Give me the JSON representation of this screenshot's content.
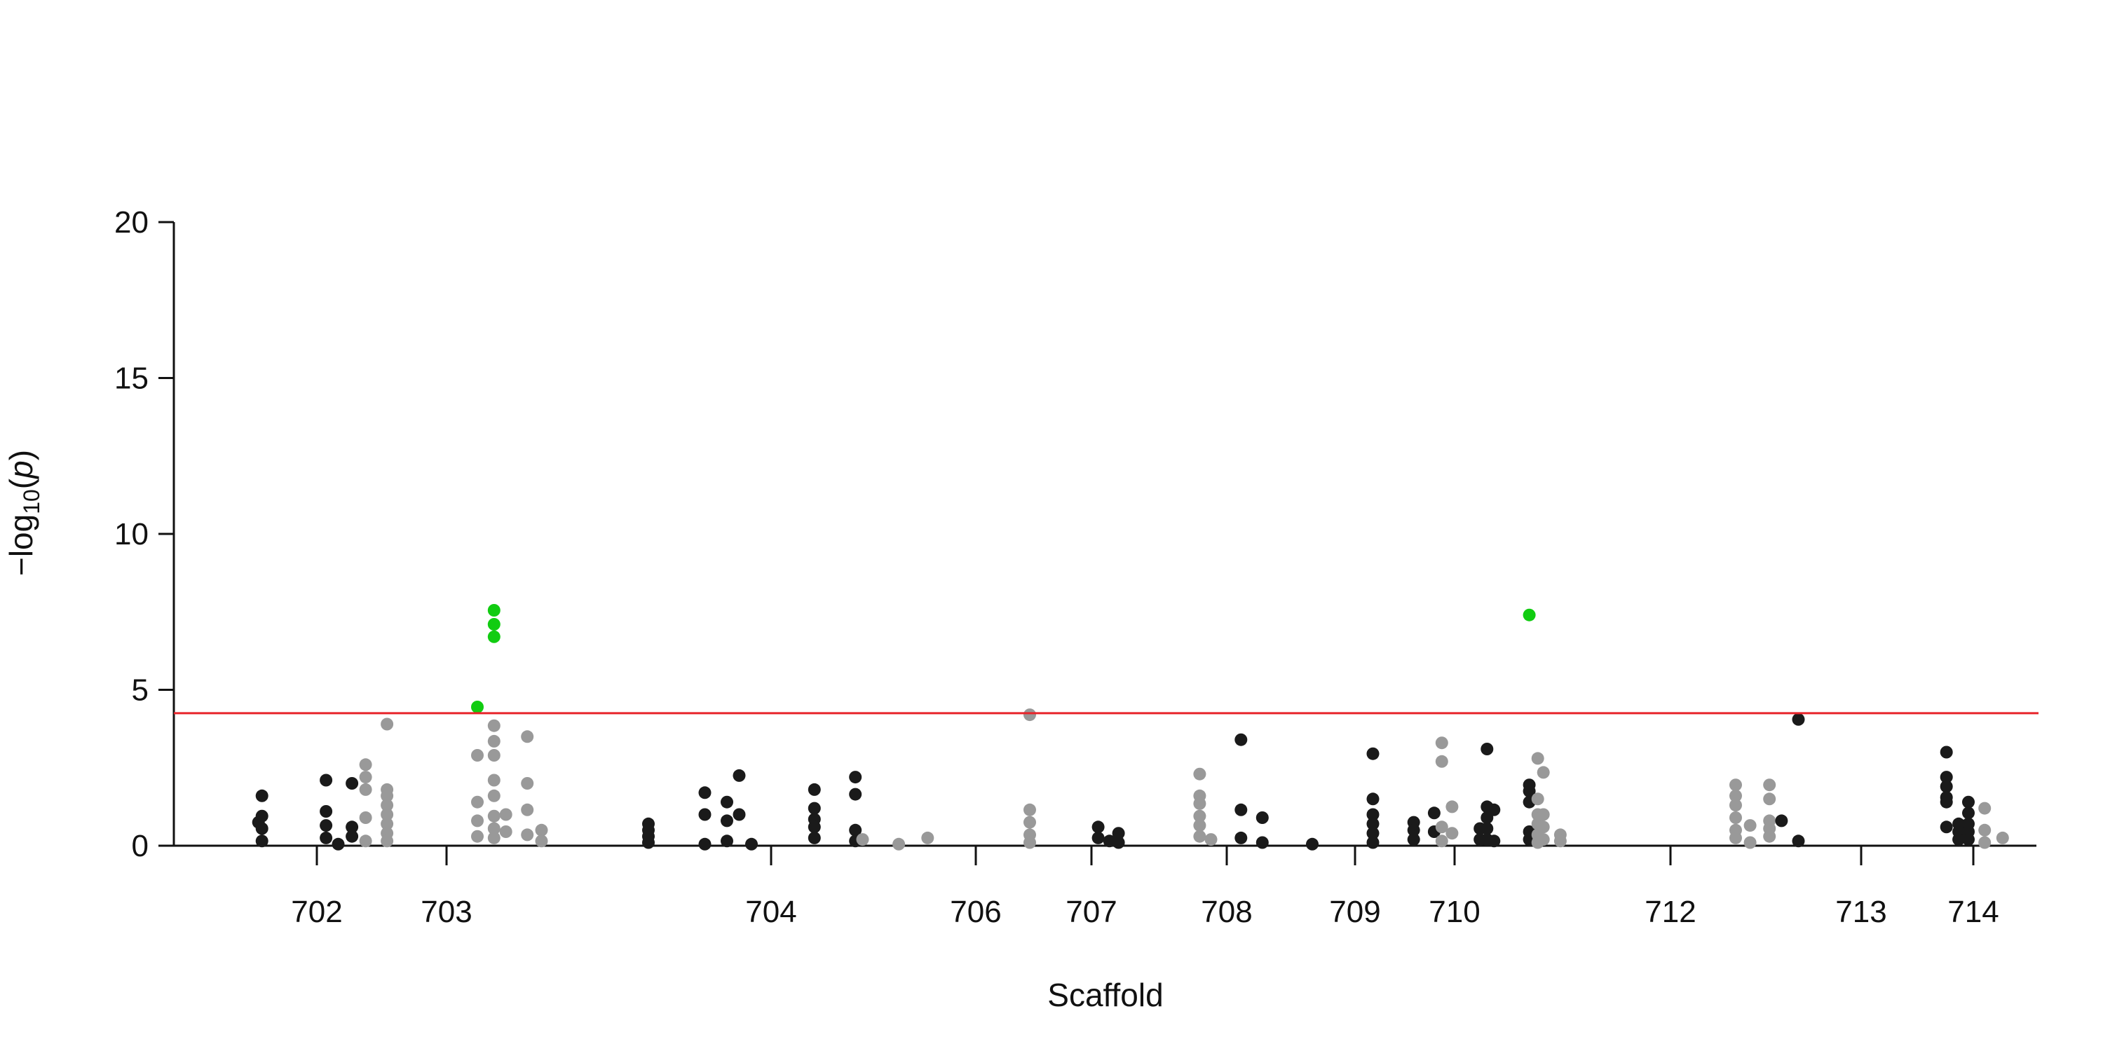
{
  "chart_data": {
    "type": "scatter",
    "title": "",
    "xlabel": "Scaffold",
    "ylabel_parts": {
      "prefix": "−log",
      "sub": "10",
      "open": "(",
      "var": "p",
      "close": ")"
    },
    "ylim": [
      0,
      20
    ],
    "yticks": [
      "0",
      "5",
      "10",
      "15",
      "20"
    ],
    "threshold": {
      "value": 4.25,
      "color": "#e8242a"
    },
    "colors": {
      "dark": "#1a1a1a",
      "light": "#999999",
      "significant": "#11cc11"
    },
    "xlim": [
      701.7,
      714.2
    ],
    "xticks": [
      {
        "label": "702",
        "pos": 702.0
      },
      {
        "label": "703",
        "pos": 702.85
      },
      {
        "label": "704",
        "pos": 704.2
      },
      {
        "label": "706",
        "pos": 705.05
      },
      {
        "label": "707",
        "pos": 705.5
      },
      {
        "label": "708",
        "pos": 706.1
      },
      {
        "label": "709",
        "pos": 706.64
      },
      {
        "label": "710",
        "pos": 707.03
      },
      {
        "label": "712",
        "pos": 708.47
      },
      {
        "label": "713",
        "pos": 709.26
      },
      {
        "label": "714",
        "pos": 709.72
      }
    ],
    "points": [
      [
        701.33,
        0.75,
        "dark"
      ],
      [
        701.37,
        1.6,
        "dark"
      ],
      [
        701.37,
        0.95,
        "dark"
      ],
      [
        701.37,
        0.55,
        "dark"
      ],
      [
        701.37,
        0.15,
        "dark"
      ],
      [
        702.06,
        2.1,
        "dark"
      ],
      [
        702.06,
        1.1,
        "dark"
      ],
      [
        702.06,
        0.65,
        "dark"
      ],
      [
        702.06,
        0.25,
        "dark"
      ],
      [
        702.14,
        0.05,
        "dark"
      ],
      [
        702.23,
        2.0,
        "dark"
      ],
      [
        702.23,
        0.6,
        "dark"
      ],
      [
        702.23,
        0.3,
        "dark"
      ],
      [
        702.32,
        2.6,
        "light"
      ],
      [
        702.32,
        2.2,
        "light"
      ],
      [
        702.32,
        1.8,
        "light"
      ],
      [
        702.32,
        0.9,
        "light"
      ],
      [
        702.32,
        0.15,
        "light"
      ],
      [
        702.46,
        3.9,
        "light"
      ],
      [
        702.46,
        1.8,
        "light"
      ],
      [
        702.46,
        1.6,
        "light"
      ],
      [
        702.46,
        1.3,
        "light"
      ],
      [
        702.46,
        1.0,
        "light"
      ],
      [
        702.46,
        0.7,
        "light"
      ],
      [
        702.46,
        0.4,
        "light"
      ],
      [
        702.46,
        0.15,
        "light"
      ],
      [
        702.98,
        4.45,
        "significant"
      ],
      [
        703.05,
        7.55,
        "significant"
      ],
      [
        703.05,
        7.1,
        "significant"
      ],
      [
        703.05,
        6.7,
        "significant"
      ],
      [
        702.98,
        2.9,
        "light"
      ],
      [
        702.98,
        1.4,
        "light"
      ],
      [
        702.98,
        0.8,
        "light"
      ],
      [
        702.98,
        0.3,
        "light"
      ],
      [
        703.05,
        3.85,
        "light"
      ],
      [
        703.05,
        3.35,
        "light"
      ],
      [
        703.05,
        2.9,
        "light"
      ],
      [
        703.05,
        2.1,
        "light"
      ],
      [
        703.05,
        1.6,
        "light"
      ],
      [
        703.05,
        0.95,
        "light"
      ],
      [
        703.05,
        0.55,
        "light"
      ],
      [
        703.05,
        0.25,
        "light"
      ],
      [
        703.1,
        0.45,
        "light"
      ],
      [
        703.1,
        1.0,
        "light"
      ],
      [
        703.19,
        3.5,
        "light"
      ],
      [
        703.19,
        2.0,
        "light"
      ],
      [
        703.19,
        1.15,
        "light"
      ],
      [
        703.19,
        0.35,
        "light"
      ],
      [
        703.25,
        0.5,
        "light"
      ],
      [
        703.25,
        0.15,
        "light"
      ],
      [
        703.7,
        0.7,
        "dark"
      ],
      [
        703.7,
        0.5,
        "dark"
      ],
      [
        703.7,
        0.3,
        "dark"
      ],
      [
        703.7,
        0.1,
        "dark"
      ],
      [
        703.93,
        1.7,
        "dark"
      ],
      [
        703.93,
        1.0,
        "dark"
      ],
      [
        703.93,
        0.05,
        "dark"
      ],
      [
        704.02,
        1.4,
        "dark"
      ],
      [
        704.02,
        0.8,
        "dark"
      ],
      [
        704.02,
        0.15,
        "dark"
      ],
      [
        704.07,
        2.25,
        "dark"
      ],
      [
        704.07,
        1.0,
        "dark"
      ],
      [
        704.12,
        0.05,
        "dark"
      ],
      [
        704.38,
        1.8,
        "dark"
      ],
      [
        704.38,
        1.2,
        "dark"
      ],
      [
        704.38,
        0.85,
        "dark"
      ],
      [
        704.38,
        0.6,
        "dark"
      ],
      [
        704.38,
        0.25,
        "dark"
      ],
      [
        704.55,
        2.2,
        "dark"
      ],
      [
        704.55,
        1.65,
        "dark"
      ],
      [
        704.55,
        0.5,
        "dark"
      ],
      [
        704.55,
        0.15,
        "dark"
      ],
      [
        704.58,
        0.2,
        "light"
      ],
      [
        704.73,
        0.05,
        "light"
      ],
      [
        704.85,
        0.25,
        "light"
      ],
      [
        705.26,
        4.2,
        "light"
      ],
      [
        705.26,
        1.15,
        "light"
      ],
      [
        705.26,
        0.75,
        "light"
      ],
      [
        705.26,
        0.35,
        "light"
      ],
      [
        705.26,
        0.1,
        "light"
      ],
      [
        705.53,
        0.6,
        "dark"
      ],
      [
        705.53,
        0.25,
        "dark"
      ],
      [
        705.58,
        0.15,
        "dark"
      ],
      [
        705.62,
        0.4,
        "dark"
      ],
      [
        705.62,
        0.1,
        "dark"
      ],
      [
        705.98,
        2.3,
        "light"
      ],
      [
        705.98,
        1.6,
        "light"
      ],
      [
        705.98,
        1.35,
        "light"
      ],
      [
        705.98,
        0.95,
        "light"
      ],
      [
        705.98,
        0.65,
        "light"
      ],
      [
        705.98,
        0.3,
        "light"
      ],
      [
        706.03,
        0.2,
        "light"
      ],
      [
        706.16,
        3.4,
        "dark"
      ],
      [
        706.16,
        1.15,
        "dark"
      ],
      [
        706.16,
        0.25,
        "dark"
      ],
      [
        706.25,
        0.9,
        "dark"
      ],
      [
        706.25,
        0.1,
        "dark"
      ],
      [
        706.46,
        0.05,
        "dark"
      ],
      [
        706.71,
        2.95,
        "dark"
      ],
      [
        706.71,
        1.5,
        "dark"
      ],
      [
        706.71,
        1.0,
        "dark"
      ],
      [
        706.71,
        0.7,
        "dark"
      ],
      [
        706.71,
        0.4,
        "dark"
      ],
      [
        706.71,
        0.1,
        "dark"
      ],
      [
        706.87,
        0.75,
        "dark"
      ],
      [
        706.87,
        0.5,
        "dark"
      ],
      [
        706.87,
        0.2,
        "dark"
      ],
      [
        706.95,
        1.05,
        "dark"
      ],
      [
        706.95,
        0.45,
        "dark"
      ],
      [
        706.98,
        3.3,
        "light"
      ],
      [
        706.98,
        2.7,
        "light"
      ],
      [
        707.02,
        1.25,
        "light"
      ],
      [
        706.98,
        0.6,
        "light"
      ],
      [
        707.02,
        0.4,
        "light"
      ],
      [
        706.98,
        0.15,
        "light"
      ],
      [
        707.21,
        0.55,
        "dark"
      ],
      [
        707.21,
        0.2,
        "dark"
      ],
      [
        707.26,
        3.1,
        "dark"
      ],
      [
        707.26,
        1.25,
        "dark"
      ],
      [
        707.26,
        0.9,
        "dark"
      ],
      [
        707.26,
        0.55,
        "dark"
      ],
      [
        707.26,
        0.2,
        "dark"
      ],
      [
        707.31,
        1.15,
        "dark"
      ],
      [
        707.31,
        0.15,
        "dark"
      ],
      [
        707.56,
        7.4,
        "significant"
      ],
      [
        707.56,
        1.95,
        "dark"
      ],
      [
        707.56,
        1.75,
        "dark"
      ],
      [
        707.56,
        1.4,
        "dark"
      ],
      [
        707.56,
        0.45,
        "dark"
      ],
      [
        707.56,
        0.2,
        "dark"
      ],
      [
        707.62,
        2.8,
        "light"
      ],
      [
        707.62,
        1.5,
        "light"
      ],
      [
        707.62,
        1.0,
        "light"
      ],
      [
        707.62,
        0.7,
        "light"
      ],
      [
        707.62,
        0.35,
        "light"
      ],
      [
        707.62,
        0.1,
        "light"
      ],
      [
        707.66,
        2.35,
        "light"
      ],
      [
        707.66,
        1.0,
        "light"
      ],
      [
        707.66,
        0.6,
        "light"
      ],
      [
        707.66,
        0.2,
        "light"
      ],
      [
        707.78,
        0.35,
        "light"
      ],
      [
        707.78,
        0.15,
        "light"
      ],
      [
        708.74,
        1.95,
        "light"
      ],
      [
        708.74,
        1.6,
        "light"
      ],
      [
        708.74,
        1.3,
        "light"
      ],
      [
        708.74,
        0.9,
        "light"
      ],
      [
        708.74,
        0.5,
        "light"
      ],
      [
        708.74,
        0.25,
        "light"
      ],
      [
        708.8,
        0.65,
        "light"
      ],
      [
        708.8,
        0.1,
        "light"
      ],
      [
        708.88,
        1.95,
        "light"
      ],
      [
        708.88,
        1.5,
        "light"
      ],
      [
        708.88,
        0.8,
        "light"
      ],
      [
        708.88,
        0.55,
        "light"
      ],
      [
        708.88,
        0.3,
        "light"
      ],
      [
        708.93,
        0.8,
        "dark"
      ],
      [
        709.0,
        4.05,
        "dark"
      ],
      [
        709.0,
        0.15,
        "dark"
      ],
      [
        709.61,
        3.0,
        "dark"
      ],
      [
        709.61,
        2.2,
        "dark"
      ],
      [
        709.61,
        1.9,
        "dark"
      ],
      [
        709.61,
        1.55,
        "dark"
      ],
      [
        709.61,
        1.4,
        "dark"
      ],
      [
        709.61,
        0.6,
        "dark"
      ],
      [
        709.66,
        0.7,
        "dark"
      ],
      [
        709.66,
        0.45,
        "dark"
      ],
      [
        709.66,
        0.2,
        "dark"
      ],
      [
        709.7,
        1.4,
        "dark"
      ],
      [
        709.7,
        1.05,
        "dark"
      ],
      [
        709.7,
        0.7,
        "dark"
      ],
      [
        709.7,
        0.45,
        "dark"
      ],
      [
        709.7,
        0.2,
        "dark"
      ],
      [
        709.79,
        1.2,
        "light"
      ],
      [
        709.79,
        0.5,
        "light"
      ],
      [
        709.79,
        0.1,
        "light"
      ],
      [
        709.9,
        0.25,
        "light"
      ]
    ]
  }
}
